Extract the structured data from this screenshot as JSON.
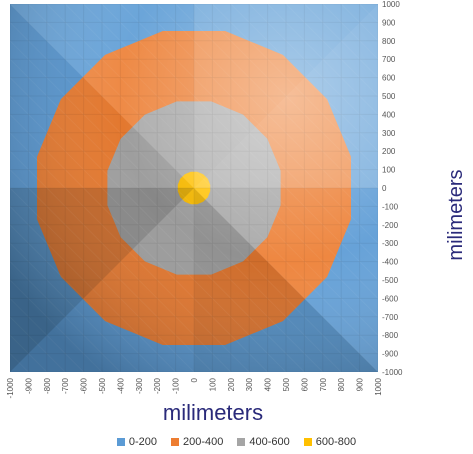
{
  "chart_data": {
    "type": "surface-contour",
    "xlabel": "milimeters",
    "ylabel": "milimeters",
    "x_ticks": [
      "-1000",
      "-900",
      "-800",
      "-700",
      "-600",
      "-500",
      "-400",
      "-300",
      "-200",
      "-100",
      "0",
      "100",
      "200",
      "300",
      "400",
      "500",
      "600",
      "700",
      "800",
      "900",
      "1000"
    ],
    "y_ticks": [
      "1000",
      "900",
      "800",
      "700",
      "600",
      "500",
      "400",
      "300",
      "200",
      "100",
      "0",
      "-100",
      "-200",
      "-300",
      "-400",
      "-500",
      "-600",
      "-700",
      "-800",
      "-900",
      "-1000"
    ],
    "xlim": [
      -1000,
      1000
    ],
    "ylim": [
      -1000,
      1000
    ],
    "z_ranges": [
      {
        "name": "0-200",
        "min": 0,
        "max": 200,
        "color": "#5b9bd5"
      },
      {
        "name": "200-400",
        "min": 200,
        "max": 400,
        "color": "#ed7d31"
      },
      {
        "name": "400-600",
        "min": 400,
        "max": 600,
        "color": "#a5a5a5"
      },
      {
        "name": "600-800",
        "min": 600,
        "max": 800,
        "color": "#ffc000"
      }
    ],
    "contour_radii_mm": {
      "600-800": 90,
      "400-600": 480,
      "200-400": 870
    },
    "legend_position": "bottom"
  }
}
